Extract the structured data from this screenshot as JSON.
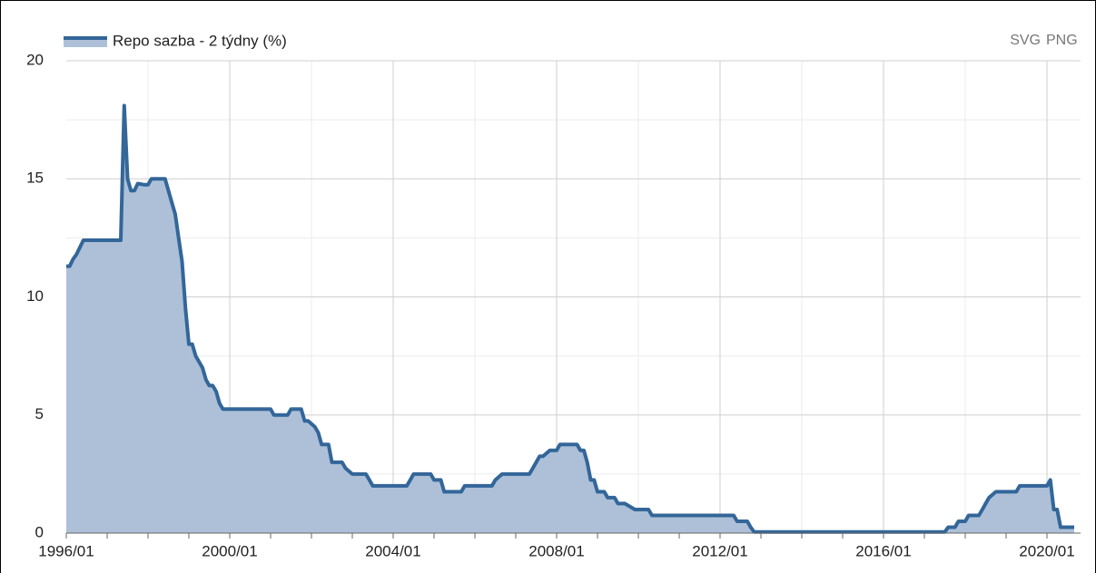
{
  "chart_data": {
    "type": "area",
    "legend": "Repo sazba - 2 týdny (%)",
    "export_links": [
      "SVG",
      "PNG"
    ],
    "color": "#336699",
    "fill": "#adc0d8",
    "grid": true,
    "x": [
      "1996/01",
      "1996/02",
      "1996/03",
      "1996/04",
      "1996/06",
      "1997/05",
      "1997/06",
      "1997/07",
      "1997/08",
      "1997/09",
      "1997/10",
      "1997/12",
      "1998/01",
      "1998/02",
      "1998/06",
      "1998/07",
      "1998/08",
      "1998/09",
      "1998/10",
      "1998/11",
      "1998/12",
      "1999/01",
      "1999/02",
      "1999/03",
      "1999/05",
      "1999/06",
      "1999/07",
      "1999/08",
      "1999/09",
      "1999/10",
      "1999/11",
      "2001/01",
      "2001/02",
      "2001/06",
      "2001/07",
      "2001/10",
      "2001/11",
      "2001/12",
      "2002/02",
      "2002/03",
      "2002/04",
      "2002/06",
      "2002/07",
      "2002/10",
      "2002/11",
      "2003/01",
      "2003/05",
      "2003/06",
      "2003/07",
      "2004/05",
      "2004/06",
      "2004/07",
      "2004/12",
      "2005/01",
      "2005/03",
      "2005/04",
      "2005/09",
      "2005/10",
      "2006/06",
      "2006/07",
      "2006/09",
      "2007/05",
      "2007/06",
      "2007/07",
      "2007/08",
      "2007/09",
      "2007/11",
      "2008/01",
      "2008/02",
      "2008/07",
      "2008/08",
      "2008/09",
      "2008/10",
      "2008/11",
      "2008/12",
      "2009/01",
      "2009/03",
      "2009/04",
      "2009/06",
      "2009/07",
      "2009/09",
      "2009/12",
      "2010/04",
      "2010/05",
      "2012/05",
      "2012/06",
      "2012/09",
      "2012/10",
      "2012/11",
      "2017/07",
      "2017/08",
      "2017/10",
      "2017/11",
      "2018/01",
      "2018/02",
      "2018/05",
      "2018/06",
      "2018/07",
      "2018/08",
      "2018/10",
      "2019/04",
      "2019/05",
      "2020/01",
      "2020/02",
      "2020/03",
      "2020/04",
      "2020/05",
      "2020/09"
    ],
    "values": [
      11.3,
      11.3,
      11.6,
      11.8,
      12.4,
      12.4,
      18.1,
      15.0,
      14.5,
      14.5,
      14.8,
      14.75,
      14.75,
      15.0,
      15.0,
      14.5,
      14.0,
      13.5,
      12.5,
      11.5,
      9.5,
      8.0,
      8.0,
      7.5,
      7.0,
      6.5,
      6.25,
      6.25,
      6.0,
      5.5,
      5.25,
      5.25,
      5.0,
      5.0,
      5.25,
      5.25,
      4.75,
      4.75,
      4.5,
      4.25,
      3.75,
      3.75,
      3.0,
      3.0,
      2.75,
      2.5,
      2.5,
      2.25,
      2.0,
      2.0,
      2.25,
      2.5,
      2.5,
      2.25,
      2.25,
      1.75,
      1.75,
      2.0,
      2.0,
      2.25,
      2.5,
      2.5,
      2.75,
      3.0,
      3.25,
      3.25,
      3.5,
      3.5,
      3.75,
      3.75,
      3.5,
      3.5,
      3.0,
      2.25,
      2.25,
      1.75,
      1.75,
      1.5,
      1.5,
      1.25,
      1.25,
      1.0,
      1.0,
      0.75,
      0.75,
      0.5,
      0.5,
      0.25,
      0.05,
      0.05,
      0.25,
      0.25,
      0.5,
      0.5,
      0.75,
      0.75,
      1.0,
      1.25,
      1.5,
      1.75,
      1.75,
      2.0,
      2.0,
      2.25,
      1.0,
      1.0,
      0.25,
      0.25
    ],
    "xlim": [
      "1996/01",
      "2020/09"
    ],
    "xticks": [
      "1996/01",
      "2000/01",
      "2004/01",
      "2008/01",
      "2012/01",
      "2016/01",
      "2020/01"
    ],
    "ylim": [
      0,
      20
    ],
    "yticks": [
      0,
      5,
      10,
      15,
      20
    ]
  }
}
